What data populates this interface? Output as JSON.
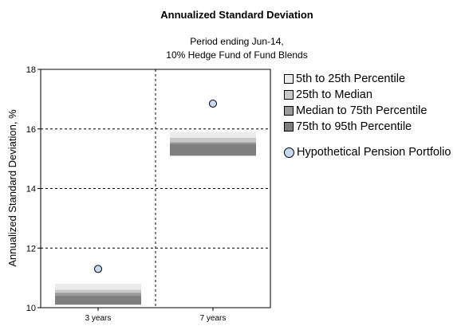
{
  "chart_data": {
    "type": "floating-bar-percentile",
    "title": "Annualized Standard Deviation",
    "subtitle_line1": "Period ending Jun-14,",
    "subtitle_line2": "10% Hedge Fund of Fund Blends",
    "ylabel": "Annualized Standard Deviation, %",
    "xlabel": "",
    "ylim": [
      10,
      18
    ],
    "yticks": [
      10,
      12,
      14,
      16,
      18
    ],
    "grid": true,
    "legend_position": "right",
    "categories": [
      "3 years",
      "7 years"
    ],
    "series": [
      {
        "name": "5th to 25th Percentile",
        "color": "#ebebeb",
        "low": [
          10.6,
          15.7
        ],
        "high": [
          10.8,
          15.9
        ]
      },
      {
        "name": "25th to Median",
        "color": "#c8c8c8",
        "low": [
          10.5,
          15.55
        ],
        "high": [
          10.6,
          15.7
        ]
      },
      {
        "name": "Median to 75th Percentile",
        "color": "#9b9b9b",
        "low": [
          10.4,
          15.5
        ],
        "high": [
          10.5,
          15.55
        ]
      },
      {
        "name": "75th to 95th Percentile",
        "color": "#7f7f7f",
        "low": [
          10.1,
          15.1
        ],
        "high": [
          10.4,
          15.5
        ]
      }
    ],
    "markers": {
      "name": "Hypothetical Pension Portfolio",
      "color": "#c6d9f1",
      "values": [
        11.3,
        16.85
      ]
    }
  }
}
